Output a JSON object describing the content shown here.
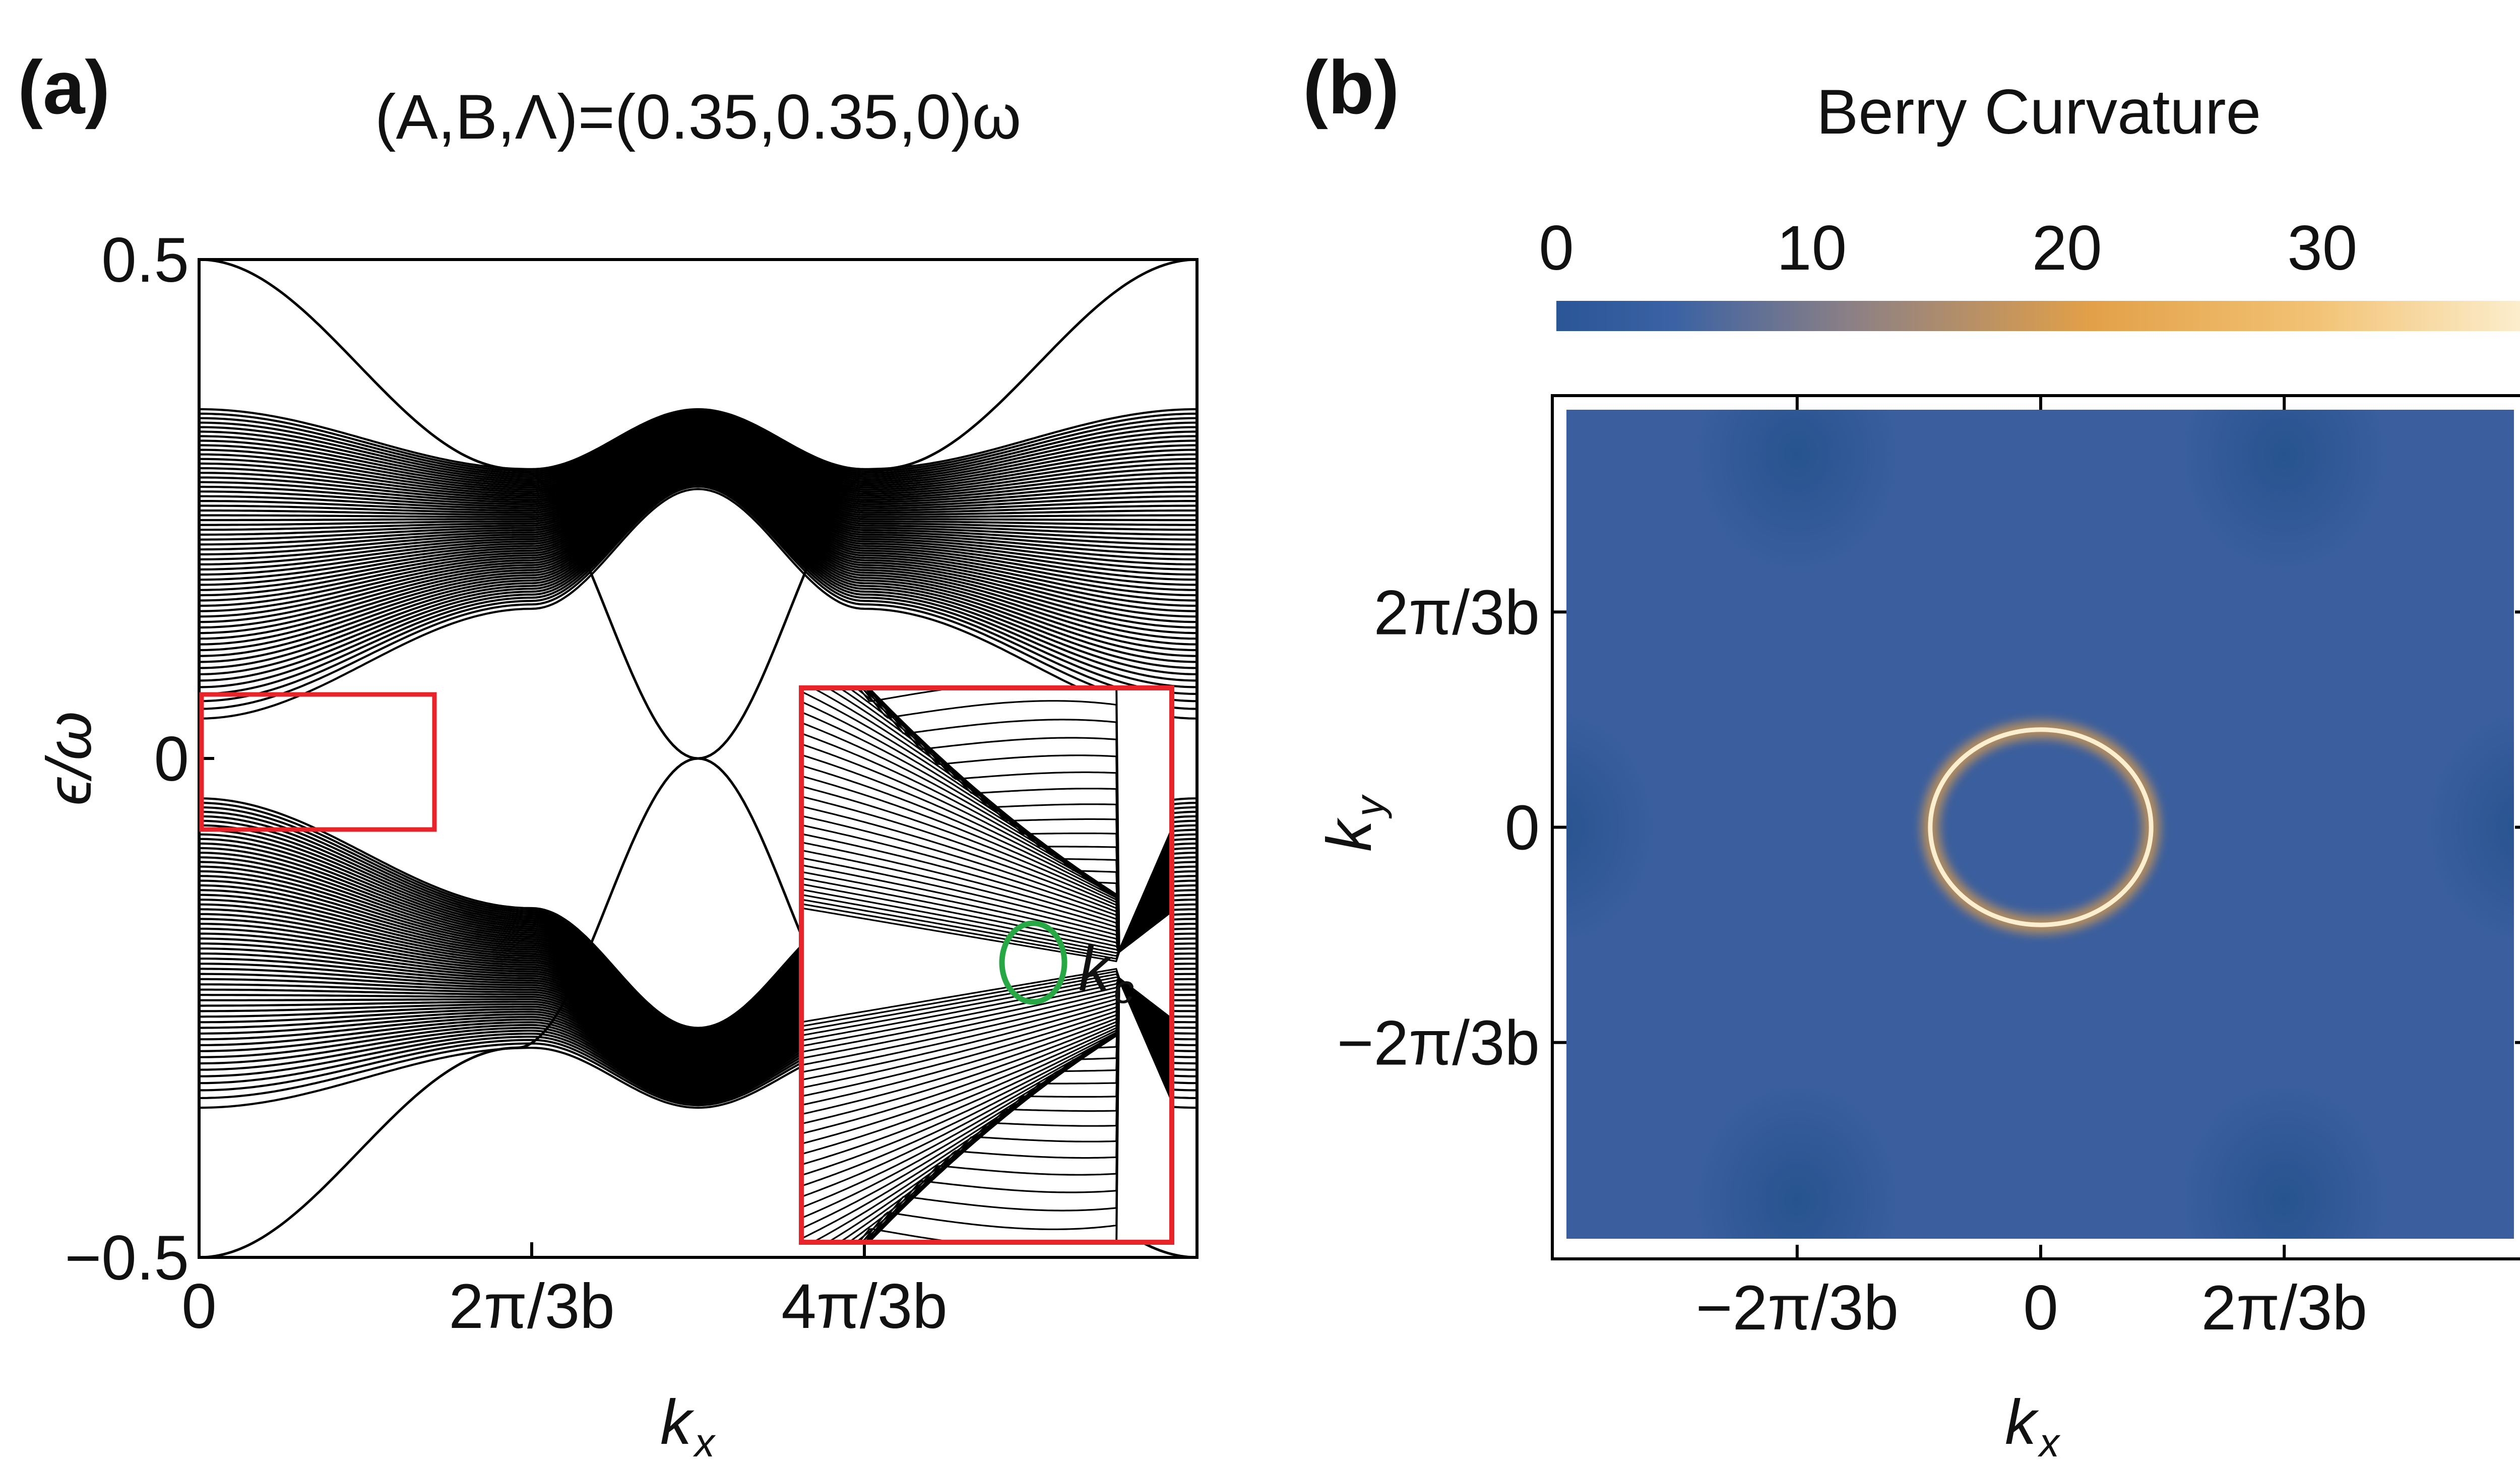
{
  "chart_data": [
    {
      "type": "line",
      "panel_label": "(a)",
      "title": "(A,B,Λ)=(0.35,0.35,0)ω",
      "xlabel": "k",
      "xlabel_sub": "x",
      "ylabel": "ϵ/ω",
      "xlim": [
        0,
        6.2832
      ],
      "ylim": [
        -0.5,
        0.5
      ],
      "x_ticks": [
        {
          "value": 0,
          "label": "0"
        },
        {
          "value": 2.0944,
          "label": "2π/3b"
        },
        {
          "value": 4.1888,
          "label": "4π/3b"
        }
      ],
      "y_ticks": [
        {
          "value": 0.5,
          "label": "0.5"
        },
        {
          "value": 0,
          "label": "0"
        },
        {
          "value": -0.5,
          "label": "−0.5"
        }
      ],
      "bulk_bands": {
        "count": 60,
        "upper_envelope": {
          "x": [
            0,
            2.0944,
            3.1416,
            4.1888,
            6.2832
          ],
          "max": [
            0.35,
            0.29,
            0.35,
            0.29,
            0.35
          ],
          "min": [
            0.04,
            0.15,
            0.27,
            0.15,
            0.04
          ]
        },
        "lower_envelope": {
          "x": [
            0,
            2.0944,
            3.1416,
            4.1888,
            6.2832
          ],
          "max": [
            -0.04,
            -0.15,
            -0.27,
            -0.15,
            -0.04
          ],
          "min": [
            -0.35,
            -0.29,
            -0.35,
            -0.29,
            -0.35
          ]
        }
      },
      "edge_states": [
        {
          "name": "",
          "x": [
            0,
            2.0,
            3.1416,
            4.28,
            6.2832
          ],
          "y": [
            -0.5,
            -0.29,
            0.0,
            0.29,
            0.5
          ]
        },
        {
          "name": "",
          "x": [
            0,
            2.0,
            3.1416,
            4.28,
            6.2832
          ],
          "y": [
            0.5,
            0.29,
            0.0,
            -0.29,
            -0.5
          ]
        }
      ],
      "inset": {
        "annotation": "k",
        "annotation_sub": "c",
        "zoom_region": {
          "x": [
            0,
            2.4
          ],
          "y": [
            -0.07,
            0.07
          ]
        }
      }
    },
    {
      "type": "heatmap",
      "panel_label": "(b)",
      "title": "Berry Curvature",
      "xlabel": "k",
      "xlabel_sub": "x",
      "ylabel": "k",
      "ylabel_sub": "y",
      "xlim": [
        -4.2,
        4.2
      ],
      "ylim": [
        -4.2,
        4.2
      ],
      "x_ticks": [
        {
          "value": -2.0944,
          "label": "−2π/3b"
        },
        {
          "value": 0,
          "label": "0"
        },
        {
          "value": 2.0944,
          "label": "2π/3b"
        }
      ],
      "y_ticks": [
        {
          "value": 2.0944,
          "label": "2π/3b"
        },
        {
          "value": 0,
          "label": "0"
        },
        {
          "value": -2.0944,
          "label": "−2π/3b"
        }
      ],
      "colorbar": {
        "range": [
          0,
          38
        ],
        "ticks": [
          {
            "value": 0,
            "label": "0"
          },
          {
            "value": 10,
            "label": "10"
          },
          {
            "value": 20,
            "label": "20"
          },
          {
            "value": 30,
            "label": "30"
          }
        ],
        "colors": [
          "#2a5596",
          "#3a62a4",
          "#8a7f86",
          "#e2a048",
          "#f2c274",
          "#fcefcf"
        ]
      },
      "features": {
        "background_value": 1,
        "ring": {
          "center": [
            0,
            0
          ],
          "radius": 0.95,
          "peak_value": 38
        },
        "dark_spots": [
          [
            -2.0944,
            3.63
          ],
          [
            2.0944,
            3.63
          ],
          [
            -4.2,
            0
          ],
          [
            4.2,
            0
          ],
          [
            -2.0944,
            -3.63
          ],
          [
            2.0944,
            -3.63
          ]
        ]
      }
    }
  ]
}
